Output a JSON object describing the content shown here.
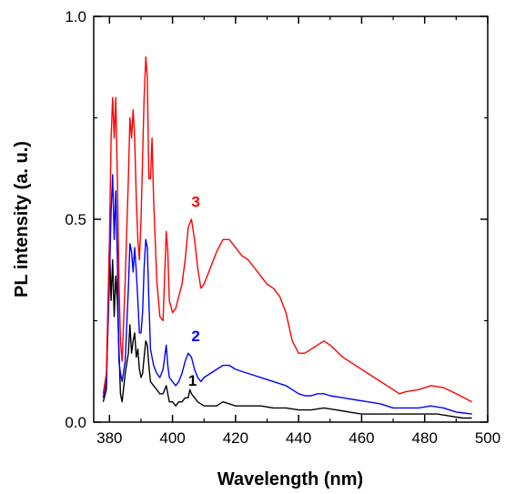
{
  "chart_data": {
    "type": "line",
    "title": "",
    "xlabel": "Wavelength (nm)",
    "ylabel": "PL intensity (a. u.)",
    "xlim": [
      375,
      500
    ],
    "ylim": [
      0,
      1.0
    ],
    "x_ticks": [
      380,
      400,
      420,
      440,
      460,
      480,
      500
    ],
    "x_tick_labels": [
      "380",
      "400",
      "420",
      "440",
      "460",
      "480",
      "500"
    ],
    "y_ticks": [
      0,
      0.5,
      1.0
    ],
    "y_tick_labels": [
      "0.0",
      "0.5",
      "1.0"
    ],
    "grid": false,
    "legend": "none",
    "series": [
      {
        "name": "1",
        "color": "#000000",
        "label_pos": [
          405,
          0.09
        ],
        "points": [
          [
            378,
            0.05
          ],
          [
            379,
            0.08
          ],
          [
            380,
            0.44
          ],
          [
            380.5,
            0.3
          ],
          [
            381,
            0.4
          ],
          [
            381.5,
            0.26
          ],
          [
            382,
            0.36
          ],
          [
            382.5,
            0.3
          ],
          [
            383,
            0.18
          ],
          [
            383.5,
            0.07
          ],
          [
            384,
            0.05
          ],
          [
            385,
            0.12
          ],
          [
            386,
            0.17
          ],
          [
            386.5,
            0.24
          ],
          [
            387,
            0.17
          ],
          [
            387.5,
            0.2
          ],
          [
            388,
            0.22
          ],
          [
            388.5,
            0.16
          ],
          [
            389,
            0.18
          ],
          [
            389.5,
            0.13
          ],
          [
            390,
            0.11
          ],
          [
            390.5,
            0.12
          ],
          [
            391,
            0.16
          ],
          [
            391.5,
            0.2
          ],
          [
            392,
            0.19
          ],
          [
            392.5,
            0.14
          ],
          [
            393,
            0.1
          ],
          [
            394,
            0.09
          ],
          [
            395,
            0.08
          ],
          [
            396,
            0.07
          ],
          [
            397,
            0.07
          ],
          [
            398,
            0.09
          ],
          [
            398.5,
            0.07
          ],
          [
            399,
            0.05
          ],
          [
            400,
            0.05
          ],
          [
            401,
            0.04
          ],
          [
            402,
            0.05
          ],
          [
            403,
            0.05
          ],
          [
            404,
            0.06
          ],
          [
            405,
            0.06
          ],
          [
            405.5,
            0.08
          ],
          [
            406,
            0.07
          ],
          [
            407,
            0.06
          ],
          [
            408,
            0.05
          ],
          [
            410,
            0.04
          ],
          [
            412,
            0.04
          ],
          [
            414,
            0.04
          ],
          [
            416,
            0.05
          ],
          [
            418,
            0.045
          ],
          [
            420,
            0.04
          ],
          [
            424,
            0.04
          ],
          [
            428,
            0.04
          ],
          [
            432,
            0.035
          ],
          [
            436,
            0.035
          ],
          [
            440,
            0.03
          ],
          [
            444,
            0.03
          ],
          [
            448,
            0.035
          ],
          [
            452,
            0.03
          ],
          [
            456,
            0.025
          ],
          [
            460,
            0.02
          ],
          [
            464,
            0.02
          ],
          [
            468,
            0.02
          ],
          [
            472,
            0.02
          ],
          [
            476,
            0.02
          ],
          [
            480,
            0.02
          ],
          [
            484,
            0.02
          ],
          [
            488,
            0.015
          ],
          [
            492,
            0.01
          ],
          [
            495,
            0.01
          ]
        ]
      },
      {
        "name": "2",
        "color": "#0000ff",
        "label_pos": [
          406,
          0.2
        ],
        "points": [
          [
            378,
            0.06
          ],
          [
            379,
            0.1
          ],
          [
            380,
            0.35
          ],
          [
            380.5,
            0.52
          ],
          [
            381,
            0.61
          ],
          [
            381.5,
            0.45
          ],
          [
            382,
            0.57
          ],
          [
            382.5,
            0.4
          ],
          [
            383,
            0.15
          ],
          [
            383.5,
            0.12
          ],
          [
            384,
            0.1
          ],
          [
            385,
            0.15
          ],
          [
            386,
            0.33
          ],
          [
            386.5,
            0.44
          ],
          [
            387,
            0.42
          ],
          [
            387.5,
            0.37
          ],
          [
            388,
            0.43
          ],
          [
            388.5,
            0.37
          ],
          [
            389,
            0.3
          ],
          [
            389.5,
            0.22
          ],
          [
            390,
            0.22
          ],
          [
            390.5,
            0.27
          ],
          [
            391,
            0.38
          ],
          [
            391.5,
            0.45
          ],
          [
            392,
            0.43
          ],
          [
            392.5,
            0.3
          ],
          [
            393,
            0.18
          ],
          [
            394,
            0.14
          ],
          [
            395,
            0.12
          ],
          [
            396,
            0.11
          ],
          [
            397,
            0.13
          ],
          [
            398,
            0.19
          ],
          [
            398.5,
            0.14
          ],
          [
            399,
            0.11
          ],
          [
            400,
            0.1
          ],
          [
            401,
            0.09
          ],
          [
            402,
            0.1
          ],
          [
            403,
            0.12
          ],
          [
            404,
            0.15
          ],
          [
            405,
            0.17
          ],
          [
            406,
            0.16
          ],
          [
            407,
            0.13
          ],
          [
            408,
            0.11
          ],
          [
            409,
            0.1
          ],
          [
            410,
            0.11
          ],
          [
            412,
            0.12
          ],
          [
            414,
            0.13
          ],
          [
            416,
            0.14
          ],
          [
            418,
            0.14
          ],
          [
            420,
            0.13
          ],
          [
            424,
            0.12
          ],
          [
            428,
            0.11
          ],
          [
            432,
            0.1
          ],
          [
            436,
            0.09
          ],
          [
            438,
            0.08
          ],
          [
            440,
            0.07
          ],
          [
            442,
            0.065
          ],
          [
            444,
            0.065
          ],
          [
            446,
            0.07
          ],
          [
            448,
            0.07
          ],
          [
            450,
            0.065
          ],
          [
            454,
            0.06
          ],
          [
            458,
            0.055
          ],
          [
            462,
            0.05
          ],
          [
            466,
            0.045
          ],
          [
            470,
            0.035
          ],
          [
            474,
            0.035
          ],
          [
            478,
            0.035
          ],
          [
            482,
            0.04
          ],
          [
            486,
            0.035
          ],
          [
            490,
            0.025
          ],
          [
            495,
            0.02
          ]
        ]
      },
      {
        "name": "3",
        "color": "#ff0000",
        "label_pos": [
          406,
          0.53
        ],
        "points": [
          [
            378,
            0.07
          ],
          [
            379,
            0.12
          ],
          [
            380,
            0.45
          ],
          [
            380.5,
            0.7
          ],
          [
            381,
            0.8
          ],
          [
            381.5,
            0.7
          ],
          [
            382,
            0.8
          ],
          [
            382.5,
            0.6
          ],
          [
            383,
            0.35
          ],
          [
            383.5,
            0.2
          ],
          [
            384,
            0.15
          ],
          [
            385,
            0.35
          ],
          [
            386,
            0.6
          ],
          [
            386.5,
            0.75
          ],
          [
            387,
            0.7
          ],
          [
            387.5,
            0.77
          ],
          [
            388,
            0.7
          ],
          [
            388.5,
            0.55
          ],
          [
            389,
            0.45
          ],
          [
            389.5,
            0.4
          ],
          [
            390,
            0.5
          ],
          [
            390.5,
            0.65
          ],
          [
            391,
            0.8
          ],
          [
            391.5,
            0.9
          ],
          [
            392,
            0.85
          ],
          [
            392.5,
            0.6
          ],
          [
            393,
            0.6
          ],
          [
            393.5,
            0.7
          ],
          [
            394,
            0.55
          ],
          [
            395,
            0.35
          ],
          [
            396,
            0.26
          ],
          [
            397,
            0.25
          ],
          [
            398,
            0.47
          ],
          [
            398.5,
            0.42
          ],
          [
            399,
            0.3
          ],
          [
            400,
            0.27
          ],
          [
            401,
            0.28
          ],
          [
            402,
            0.31
          ],
          [
            403,
            0.34
          ],
          [
            404,
            0.4
          ],
          [
            405,
            0.48
          ],
          [
            406,
            0.5
          ],
          [
            407,
            0.45
          ],
          [
            408,
            0.38
          ],
          [
            409,
            0.33
          ],
          [
            410,
            0.34
          ],
          [
            412,
            0.38
          ],
          [
            414,
            0.42
          ],
          [
            416,
            0.45
          ],
          [
            418,
            0.45
          ],
          [
            420,
            0.43
          ],
          [
            422,
            0.41
          ],
          [
            424,
            0.4
          ],
          [
            426,
            0.38
          ],
          [
            428,
            0.36
          ],
          [
            430,
            0.34
          ],
          [
            432,
            0.33
          ],
          [
            434,
            0.31
          ],
          [
            436,
            0.27
          ],
          [
            438,
            0.2
          ],
          [
            440,
            0.17
          ],
          [
            442,
            0.17
          ],
          [
            444,
            0.18
          ],
          [
            446,
            0.19
          ],
          [
            448,
            0.2
          ],
          [
            450,
            0.19
          ],
          [
            454,
            0.16
          ],
          [
            458,
            0.14
          ],
          [
            462,
            0.12
          ],
          [
            466,
            0.1
          ],
          [
            470,
            0.08
          ],
          [
            472,
            0.07
          ],
          [
            474,
            0.075
          ],
          [
            478,
            0.08
          ],
          [
            482,
            0.09
          ],
          [
            486,
            0.085
          ],
          [
            490,
            0.07
          ],
          [
            495,
            0.05
          ]
        ]
      }
    ]
  }
}
